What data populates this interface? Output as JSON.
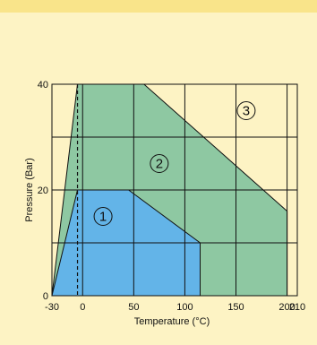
{
  "chart_data": {
    "type": "area",
    "title": "",
    "xlabel": "Temperature (°C)",
    "ylabel": "Pressure (Bar)",
    "xlim": [
      -30,
      210
    ],
    "ylim": [
      0,
      40
    ],
    "x_ticks": [
      -30,
      0,
      50,
      100,
      150,
      200,
      210
    ],
    "x_tick_labels": [
      "-30",
      "0",
      "50",
      "100",
      "150",
      "200",
      "210"
    ],
    "y_ticks": [
      0,
      20,
      40
    ],
    "y_tick_labels": [
      "0",
      "20",
      "40"
    ],
    "x_gridlines": [
      -30,
      0,
      50,
      100,
      150,
      200,
      210
    ],
    "y_gridlines": [
      0,
      10,
      20,
      30,
      40
    ],
    "dashed_reference_x": -5,
    "grid": true,
    "zones": [
      {
        "label": "1",
        "color": "#63b4e8",
        "label_at": [
          20,
          15
        ],
        "points": [
          [
            -30,
            0
          ],
          [
            -5,
            20
          ],
          [
            45,
            20
          ],
          [
            115,
            10
          ],
          [
            115,
            0
          ]
        ]
      },
      {
        "label": "2",
        "color": "#8ec8a2",
        "label_at": [
          75,
          25
        ],
        "points": [
          [
            -30,
            0
          ],
          [
            -5,
            40
          ],
          [
            60,
            40
          ],
          [
            200,
            16
          ],
          [
            200,
            0
          ]
        ]
      },
      {
        "label": "3",
        "color": "#fdf3c4",
        "label_at": [
          160,
          35
        ],
        "points": []
      }
    ]
  },
  "colors": {
    "background": "#fdf3c4",
    "header_band": "#f9e48a",
    "grid": "#111111"
  }
}
